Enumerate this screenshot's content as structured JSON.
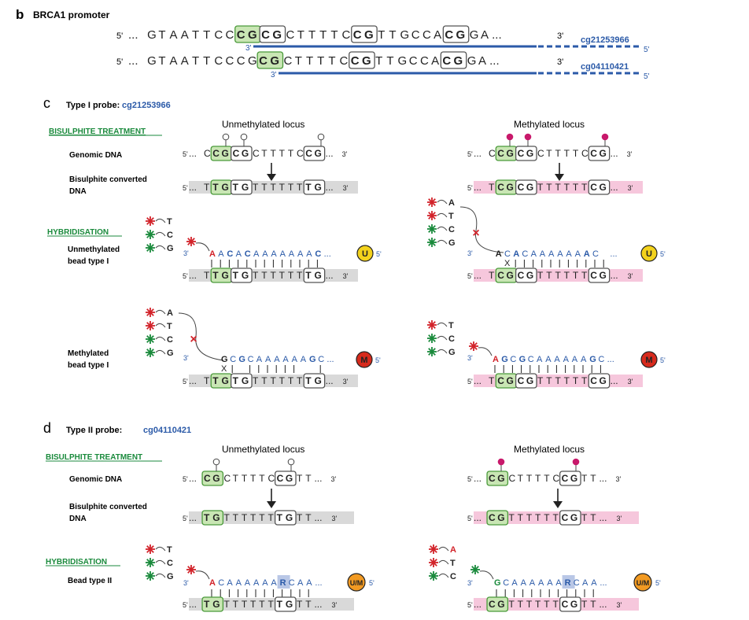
{
  "colors": {
    "blue": "#2b5aa8",
    "green": "#1a8a3c",
    "red": "#d2232a",
    "pink_band": "#f6c7dc",
    "grey_band": "#d9d9d9",
    "cg_green_fill": "#c9e6b4",
    "cg_green_stroke": "#4a9a3a",
    "methyl_dot": "#c8196b",
    "u_bead": "#f3d21c",
    "m_bead": "#d62a1c",
    "um_bead": "#f29a22",
    "r_box": "#b9c7e6"
  },
  "panel_b": {
    "letter": "b",
    "title": "BRCA1 promoter",
    "prime5": "5'",
    "prime3": "3'",
    "dots": "...",
    "seq_before": "GTAATTCC",
    "row1_probe": "cg21253966",
    "row2_probe": "cg04110421"
  },
  "panel_c": {
    "letter": "c",
    "title": "Type I probe:",
    "probe": "cg21253966",
    "bisulphite_treatment": "BISULPHITE TREATMENT",
    "hybridisation": "HYBRIDISATION",
    "unmethylated_locus": "Unmethylated locus",
    "methylated_locus": "Methylated locus",
    "genomic_dna": "Genomic DNA",
    "bisulphite_converted_line1": "Bisulphite converted",
    "bisulphite_converted_line2": "DNA",
    "unmethylated_bead_line1": "Unmethylated",
    "unmethylated_bead_line2": "bead type I",
    "methylated_bead_line1": "Methylated",
    "methylated_bead_line2": "bead type I",
    "bead_u": "U",
    "bead_m": "M",
    "mismatch": "X",
    "x_mark": "×"
  },
  "panel_d": {
    "letter": "d",
    "title": "Type II probe:",
    "probe": "cg04110421",
    "bisulphite_treatment": "BISULPHITE TREATMENT",
    "hybridisation": "HYBRIDISATION",
    "unmethylated_locus": "Unmethylated locus",
    "methylated_locus": "Methylated locus",
    "genomic_dna": "Genomic DNA",
    "bisulphite_converted_line1": "Bisulphite converted",
    "bisulphite_converted_line2": "DNA",
    "bead_type_ii": "Bead type II",
    "bead_um": "U/M",
    "r": "R"
  },
  "asterisk": "*",
  "nuc": {
    "A": "A",
    "T": "T",
    "C": "C",
    "G": "G"
  }
}
